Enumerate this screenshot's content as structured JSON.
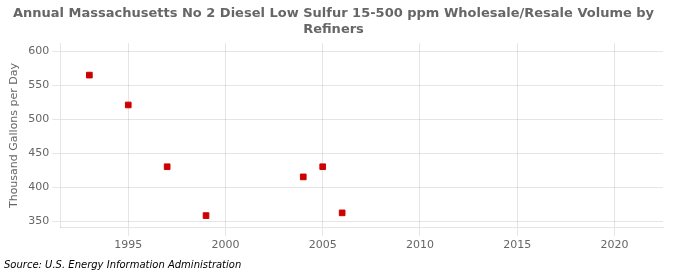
{
  "chart_data": {
    "type": "scatter",
    "title": "Annual Massachusetts No 2 Diesel Low Sulfur 15-500 ppm Wholesale/Resale Volume by\nRefiners",
    "ylabel": "Thousand Gallons per Day",
    "annotations": [
      "Source: U.S. Energy Information Administration"
    ],
    "x": [
      1993,
      1995,
      1997,
      1999,
      2004,
      2005,
      2006
    ],
    "values": [
      565,
      521,
      430,
      358,
      415,
      430,
      362
    ],
    "color": "#cc0000",
    "marker": "square",
    "xlim": [
      1991.5,
      2022.5
    ],
    "ylim": [
      340,
      612
    ],
    "xticks": [
      1995,
      2000,
      2005,
      2010,
      2015,
      2020
    ],
    "yticks": [
      350,
      400,
      450,
      500,
      550,
      600
    ],
    "grid": true
  }
}
